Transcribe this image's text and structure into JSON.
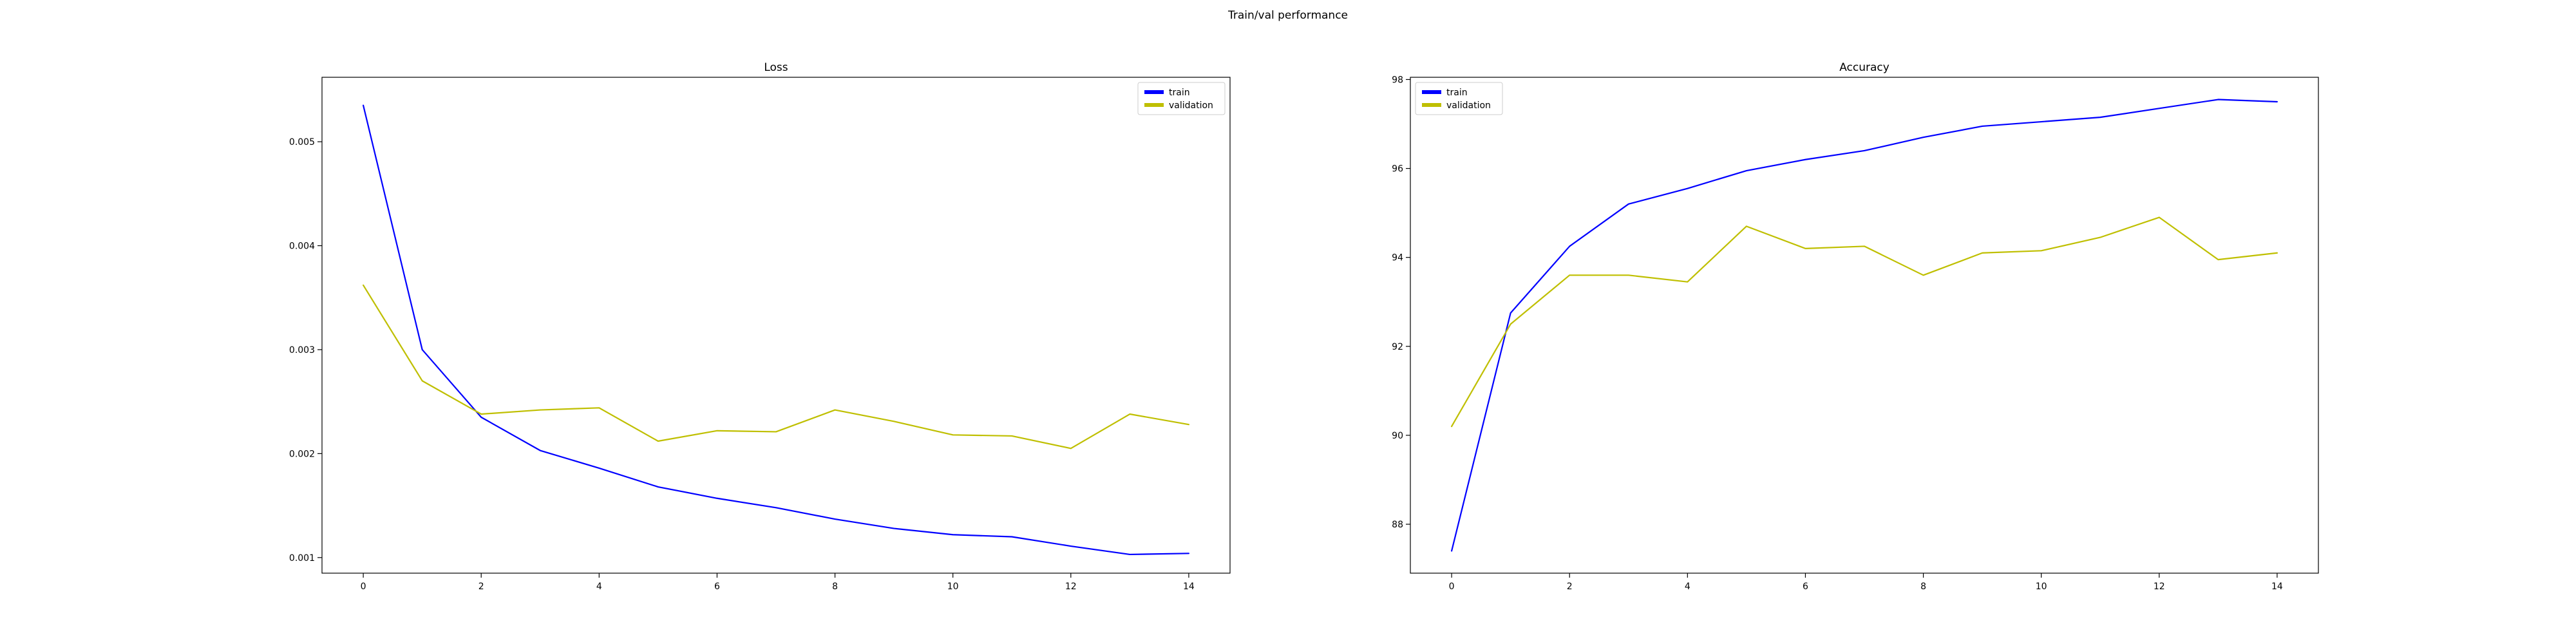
{
  "suptitle": "Train/val performance",
  "colors": {
    "train": "#0000ff",
    "validation": "#bfbf00"
  },
  "chart_data": [
    {
      "type": "line",
      "title": "Loss",
      "xlabel": "",
      "ylabel": "",
      "xlim": [
        -0.7,
        14.7
      ],
      "ylim": [
        0.00085,
        0.00562
      ],
      "xticks": [
        0,
        2,
        4,
        6,
        8,
        10,
        12,
        14
      ],
      "xtick_labels": [
        "0",
        "2",
        "4",
        "6",
        "8",
        "10",
        "12",
        "14"
      ],
      "yticks": [
        0.001,
        0.002,
        0.003,
        0.004,
        0.005
      ],
      "ytick_labels": [
        "0.001",
        "0.002",
        "0.003",
        "0.004",
        "0.005"
      ],
      "legend": "upper right",
      "grid": false,
      "x": [
        0,
        1,
        2,
        3,
        4,
        5,
        6,
        7,
        8,
        9,
        10,
        11,
        12,
        13,
        14
      ],
      "series": [
        {
          "name": "train",
          "color": "#0000ff",
          "values": [
            0.00535,
            0.003,
            0.00235,
            0.00203,
            0.00186,
            0.00168,
            0.00157,
            0.00148,
            0.00137,
            0.00128,
            0.00122,
            0.0012,
            0.00111,
            0.00103,
            0.00104
          ]
        },
        {
          "name": "validation",
          "color": "#bfbf00",
          "values": [
            0.00362,
            0.0027,
            0.00238,
            0.00242,
            0.00244,
            0.00212,
            0.00222,
            0.00221,
            0.00242,
            0.00231,
            0.00218,
            0.00217,
            0.00205,
            0.00238,
            0.00228
          ]
        }
      ]
    },
    {
      "type": "line",
      "title": "Accuracy",
      "xlabel": "",
      "ylabel": "",
      "xlim": [
        -0.7,
        14.7
      ],
      "ylim": [
        86.9,
        98.05
      ],
      "xticks": [
        0,
        2,
        4,
        6,
        8,
        10,
        12,
        14
      ],
      "xtick_labels": [
        "0",
        "2",
        "4",
        "6",
        "8",
        "10",
        "12",
        "14"
      ],
      "yticks": [
        88,
        90,
        92,
        94,
        96,
        98
      ],
      "ytick_labels": [
        "88",
        "90",
        "92",
        "94",
        "96",
        "98"
      ],
      "legend": "upper left",
      "grid": false,
      "x": [
        0,
        1,
        2,
        3,
        4,
        5,
        6,
        7,
        8,
        9,
        10,
        11,
        12,
        13,
        14
      ],
      "series": [
        {
          "name": "train",
          "color": "#0000ff",
          "values": [
            87.4,
            92.75,
            94.25,
            95.2,
            95.55,
            95.95,
            96.2,
            96.4,
            96.7,
            96.95,
            97.05,
            97.15,
            97.35,
            97.55,
            97.5
          ]
        },
        {
          "name": "validation",
          "color": "#bfbf00",
          "values": [
            90.2,
            92.5,
            93.6,
            93.6,
            93.45,
            94.7,
            94.2,
            94.25,
            93.6,
            94.1,
            94.15,
            94.45,
            94.9,
            93.95,
            94.1
          ]
        }
      ]
    }
  ]
}
